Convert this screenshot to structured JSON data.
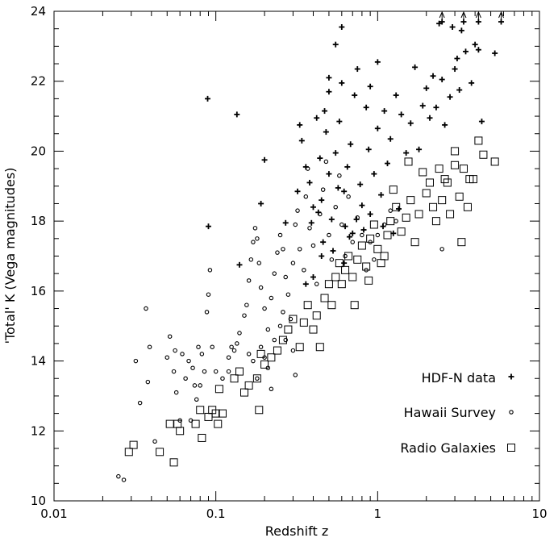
{
  "chart_data": {
    "type": "scatter",
    "xlabel": "Redshift z",
    "ylabel": "'Total' K (Vega magnitudes)",
    "xscale": "log",
    "xlim": [
      0.01,
      10
    ],
    "ylim": [
      10,
      24
    ],
    "xtick_labels": [
      "0.01",
      "0.1",
      "1",
      "10"
    ],
    "ytick_labels": [
      "10",
      "12",
      "14",
      "16",
      "18",
      "20",
      "22",
      "24"
    ],
    "grid": false,
    "legend_position": "bottom-right",
    "series": [
      {
        "name": "HDF-N data",
        "marker": "plus",
        "points": [
          [
            0.089,
            21.5
          ],
          [
            0.135,
            21.05
          ],
          [
            0.09,
            17.85
          ],
          [
            0.14,
            16.75
          ],
          [
            0.19,
            18.5
          ],
          [
            0.2,
            19.75
          ],
          [
            0.27,
            17.95
          ],
          [
            0.32,
            18.85
          ],
          [
            0.33,
            20.75
          ],
          [
            0.34,
            20.3
          ],
          [
            0.36,
            19.55
          ],
          [
            0.38,
            19.1
          ],
          [
            0.4,
            18.4
          ],
          [
            0.42,
            20.95
          ],
          [
            0.44,
            19.8
          ],
          [
            0.45,
            18.6
          ],
          [
            0.46,
            17.4
          ],
          [
            0.47,
            21.15
          ],
          [
            0.48,
            20.55
          ],
          [
            0.5,
            19.35
          ],
          [
            0.5,
            22.1
          ],
          [
            0.5,
            21.7
          ],
          [
            0.52,
            18.05
          ],
          [
            0.55,
            23.05
          ],
          [
            0.55,
            19.95
          ],
          [
            0.58,
            20.85
          ],
          [
            0.6,
            23.55
          ],
          [
            0.6,
            21.95
          ],
          [
            0.62,
            18.85
          ],
          [
            0.65,
            19.55
          ],
          [
            0.68,
            20.2
          ],
          [
            0.7,
            17.65
          ],
          [
            0.72,
            21.6
          ],
          [
            0.75,
            22.35
          ],
          [
            0.78,
            19.05
          ],
          [
            0.8,
            18.45
          ],
          [
            0.85,
            21.25
          ],
          [
            0.88,
            20.05
          ],
          [
            0.9,
            21.85
          ],
          [
            0.95,
            19.35
          ],
          [
            1.0,
            22.55
          ],
          [
            1.0,
            20.65
          ],
          [
            1.05,
            18.75
          ],
          [
            1.1,
            21.15
          ],
          [
            1.15,
            19.65
          ],
          [
            1.2,
            20.35
          ],
          [
            1.3,
            21.6
          ],
          [
            1.35,
            18.35
          ],
          [
            1.4,
            21.05
          ],
          [
            1.5,
            19.95
          ],
          [
            1.6,
            20.8
          ],
          [
            1.7,
            22.4
          ],
          [
            1.8,
            20.05
          ],
          [
            1.9,
            21.3
          ],
          [
            2.0,
            21.8
          ],
          [
            2.1,
            20.95
          ],
          [
            2.2,
            22.15
          ],
          [
            2.3,
            21.25
          ],
          [
            2.4,
            23.65
          ],
          [
            2.5,
            22.05
          ],
          [
            2.6,
            20.75
          ],
          [
            2.8,
            21.55
          ],
          [
            2.9,
            23.55
          ],
          [
            3.0,
            22.35
          ],
          [
            3.1,
            22.65
          ],
          [
            3.2,
            21.75
          ],
          [
            3.3,
            23.45
          ],
          [
            3.5,
            22.85
          ],
          [
            3.8,
            21.95
          ],
          [
            4.0,
            23.05
          ],
          [
            4.2,
            22.9
          ],
          [
            4.4,
            20.85
          ],
          [
            5.3,
            22.8
          ],
          [
            0.39,
            17.95
          ],
          [
            0.43,
            18.25
          ],
          [
            0.53,
            17.15
          ],
          [
            0.57,
            18.95
          ],
          [
            0.63,
            17.85
          ],
          [
            0.67,
            17.55
          ],
          [
            0.74,
            18.05
          ],
          [
            0.82,
            17.75
          ],
          [
            0.9,
            18.2
          ],
          [
            1.08,
            17.85
          ],
          [
            1.25,
            17.65
          ],
          [
            0.4,
            16.4
          ],
          [
            0.62,
            16.8
          ],
          [
            0.36,
            16.2
          ],
          [
            0.45,
            17.0
          ]
        ],
        "upper_limits": [
          {
            "z": 2.5,
            "k": 23.7
          },
          {
            "z": 3.4,
            "k": 23.7
          },
          {
            "z": 4.2,
            "k": 23.7
          },
          {
            "z": 5.8,
            "k": 23.7
          }
        ]
      },
      {
        "name": "Hawaii Survey",
        "marker": "circle",
        "points": [
          [
            0.025,
            10.7
          ],
          [
            0.027,
            10.6
          ],
          [
            0.032,
            14.0
          ],
          [
            0.034,
            12.8
          ],
          [
            0.037,
            15.5
          ],
          [
            0.038,
            13.4
          ],
          [
            0.039,
            14.4
          ],
          [
            0.042,
            11.7
          ],
          [
            0.05,
            14.1
          ],
          [
            0.052,
            14.7
          ],
          [
            0.055,
            13.7
          ],
          [
            0.056,
            14.3
          ],
          [
            0.057,
            13.1
          ],
          [
            0.06,
            12.3
          ],
          [
            0.062,
            14.2
          ],
          [
            0.065,
            13.5
          ],
          [
            0.068,
            14.0
          ],
          [
            0.07,
            12.3
          ],
          [
            0.072,
            13.8
          ],
          [
            0.074,
            13.3
          ],
          [
            0.076,
            12.9
          ],
          [
            0.078,
            14.4
          ],
          [
            0.08,
            13.3
          ],
          [
            0.082,
            14.2
          ],
          [
            0.085,
            13.7
          ],
          [
            0.088,
            15.4
          ],
          [
            0.09,
            15.9
          ],
          [
            0.092,
            16.6
          ],
          [
            0.095,
            14.4
          ],
          [
            0.1,
            13.7
          ],
          [
            0.11,
            13.5
          ],
          [
            0.12,
            14.1
          ],
          [
            0.125,
            14.4
          ],
          [
            0.13,
            14.3
          ],
          [
            0.135,
            14.5
          ],
          [
            0.14,
            14.8
          ],
          [
            0.15,
            15.3
          ],
          [
            0.155,
            15.6
          ],
          [
            0.16,
            16.3
          ],
          [
            0.165,
            16.9
          ],
          [
            0.17,
            17.4
          ],
          [
            0.175,
            17.8
          ],
          [
            0.18,
            17.5
          ],
          [
            0.185,
            16.8
          ],
          [
            0.19,
            16.1
          ],
          [
            0.2,
            15.5
          ],
          [
            0.21,
            14.9
          ],
          [
            0.22,
            15.8
          ],
          [
            0.23,
            16.5
          ],
          [
            0.24,
            17.1
          ],
          [
            0.25,
            17.6
          ],
          [
            0.26,
            17.2
          ],
          [
            0.27,
            16.4
          ],
          [
            0.28,
            15.9
          ],
          [
            0.3,
            16.8
          ],
          [
            0.31,
            17.9
          ],
          [
            0.32,
            18.3
          ],
          [
            0.33,
            17.2
          ],
          [
            0.35,
            16.6
          ],
          [
            0.36,
            18.7
          ],
          [
            0.37,
            19.5
          ],
          [
            0.38,
            17.8
          ],
          [
            0.4,
            17.3
          ],
          [
            0.42,
            16.2
          ],
          [
            0.44,
            18.2
          ],
          [
            0.46,
            18.9
          ],
          [
            0.48,
            19.7
          ],
          [
            0.5,
            17.6
          ],
          [
            0.52,
            16.9
          ],
          [
            0.55,
            18.4
          ],
          [
            0.58,
            19.3
          ],
          [
            0.6,
            17.9
          ],
          [
            0.63,
            17.0
          ],
          [
            0.66,
            18.7
          ],
          [
            0.7,
            17.4
          ],
          [
            0.75,
            18.1
          ],
          [
            0.8,
            17.6
          ],
          [
            0.85,
            16.6
          ],
          [
            0.9,
            17.4
          ],
          [
            0.95,
            16.9
          ],
          [
            1.0,
            17.6
          ],
          [
            1.1,
            17.9
          ],
          [
            1.2,
            18.3
          ],
          [
            1.3,
            18.0
          ],
          [
            0.12,
            13.7
          ],
          [
            0.16,
            14.2
          ],
          [
            0.17,
            14.0
          ],
          [
            0.18,
            13.5
          ],
          [
            0.19,
            14.4
          ],
          [
            0.2,
            14.1
          ],
          [
            0.21,
            13.8
          ],
          [
            0.23,
            14.6
          ],
          [
            0.25,
            15.0
          ],
          [
            0.27,
            14.6
          ],
          [
            0.29,
            15.2
          ],
          [
            0.31,
            13.6
          ],
          [
            0.26,
            15.4
          ],
          [
            0.22,
            13.2
          ],
          [
            0.3,
            14.3
          ],
          [
            2.5,
            17.2
          ]
        ]
      },
      {
        "name": "Radio Galaxies",
        "marker": "square",
        "points": [
          [
            0.029,
            11.4
          ],
          [
            0.031,
            11.6
          ],
          [
            0.045,
            11.4
          ],
          [
            0.055,
            11.1
          ],
          [
            0.052,
            12.2
          ],
          [
            0.058,
            12.2
          ],
          [
            0.06,
            12.0
          ],
          [
            0.075,
            12.2
          ],
          [
            0.08,
            12.6
          ],
          [
            0.082,
            11.8
          ],
          [
            0.09,
            12.4
          ],
          [
            0.095,
            12.6
          ],
          [
            0.1,
            12.5
          ],
          [
            0.103,
            12.2
          ],
          [
            0.11,
            12.5
          ],
          [
            0.105,
            13.2
          ],
          [
            0.13,
            13.5
          ],
          [
            0.14,
            13.7
          ],
          [
            0.15,
            13.1
          ],
          [
            0.16,
            13.3
          ],
          [
            0.18,
            13.5
          ],
          [
            0.185,
            12.6
          ],
          [
            0.19,
            14.2
          ],
          [
            0.2,
            13.9
          ],
          [
            0.22,
            14.1
          ],
          [
            0.24,
            14.3
          ],
          [
            0.26,
            14.6
          ],
          [
            0.28,
            14.9
          ],
          [
            0.3,
            15.2
          ],
          [
            0.33,
            14.4
          ],
          [
            0.35,
            15.1
          ],
          [
            0.37,
            15.6
          ],
          [
            0.4,
            14.9
          ],
          [
            0.42,
            15.3
          ],
          [
            0.44,
            14.4
          ],
          [
            0.47,
            15.8
          ],
          [
            0.5,
            16.2
          ],
          [
            0.52,
            15.6
          ],
          [
            0.55,
            16.4
          ],
          [
            0.58,
            16.8
          ],
          [
            0.6,
            16.2
          ],
          [
            0.63,
            16.6
          ],
          [
            0.66,
            17.0
          ],
          [
            0.7,
            16.4
          ],
          [
            0.72,
            15.6
          ],
          [
            0.75,
            16.9
          ],
          [
            0.8,
            17.3
          ],
          [
            0.85,
            16.7
          ],
          [
            0.9,
            17.5
          ],
          [
            0.95,
            17.9
          ],
          [
            1.0,
            17.2
          ],
          [
            1.05,
            16.8
          ],
          [
            1.1,
            17.0
          ],
          [
            1.15,
            17.6
          ],
          [
            1.2,
            18.0
          ],
          [
            1.3,
            18.4
          ],
          [
            1.4,
            17.7
          ],
          [
            1.5,
            18.1
          ],
          [
            1.6,
            18.6
          ],
          [
            1.7,
            17.4
          ],
          [
            1.8,
            18.2
          ],
          [
            2.0,
            18.8
          ],
          [
            2.1,
            19.1
          ],
          [
            2.2,
            18.4
          ],
          [
            2.3,
            18.0
          ],
          [
            2.5,
            18.6
          ],
          [
            2.6,
            19.2
          ],
          [
            2.8,
            18.2
          ],
          [
            3.0,
            19.6
          ],
          [
            3.2,
            18.7
          ],
          [
            3.3,
            17.4
          ],
          [
            3.4,
            19.5
          ],
          [
            3.6,
            18.4
          ],
          [
            3.7,
            19.2
          ],
          [
            3.9,
            19.2
          ],
          [
            4.2,
            20.3
          ],
          [
            4.5,
            19.9
          ],
          [
            5.3,
            19.7
          ],
          [
            3.0,
            20.0
          ],
          [
            2.7,
            19.1
          ],
          [
            2.4,
            19.5
          ],
          [
            1.9,
            19.4
          ],
          [
            1.55,
            19.7
          ],
          [
            1.25,
            18.9
          ],
          [
            0.88,
            16.3
          ]
        ]
      }
    ]
  }
}
